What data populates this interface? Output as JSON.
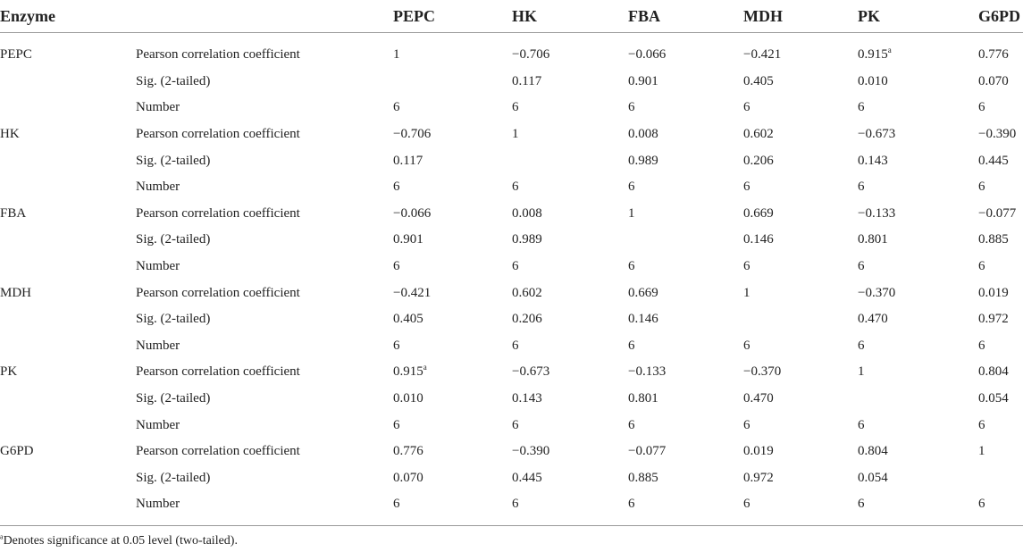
{
  "header": {
    "enzyme": "Enzyme",
    "stat": "",
    "columns": [
      "PEPC",
      "HK",
      "FBA",
      "MDH",
      "PK",
      "G6PD"
    ]
  },
  "groups": [
    {
      "enzyme": "PEPC",
      "rows": [
        {
          "stat": "Pearson correlation coefficient",
          "values": [
            "1",
            "−0.706",
            "−0.066",
            "−0.421",
            "0.915",
            "0.776"
          ],
          "sups": [
            "",
            "",
            "",
            "",
            "a",
            ""
          ]
        },
        {
          "stat": "Sig. (2-tailed)",
          "values": [
            "",
            "0.117",
            "0.901",
            "0.405",
            "0.010",
            "0.070"
          ],
          "sups": [
            "",
            "",
            "",
            "",
            "",
            ""
          ]
        },
        {
          "stat": "Number",
          "values": [
            "6",
            "6",
            "6",
            "6",
            "6",
            "6"
          ],
          "sups": [
            "",
            "",
            "",
            "",
            "",
            ""
          ]
        }
      ]
    },
    {
      "enzyme": "HK",
      "rows": [
        {
          "stat": "Pearson correlation coefficient",
          "values": [
            "−0.706",
            "1",
            "0.008",
            "0.602",
            "−0.673",
            "−0.390"
          ],
          "sups": [
            "",
            "",
            "",
            "",
            "",
            ""
          ]
        },
        {
          "stat": "Sig. (2-tailed)",
          "values": [
            "0.117",
            "",
            "0.989",
            "0.206",
            "0.143",
            "0.445"
          ],
          "sups": [
            "",
            "",
            "",
            "",
            "",
            ""
          ]
        },
        {
          "stat": "Number",
          "values": [
            "6",
            "6",
            "6",
            "6",
            "6",
            "6"
          ],
          "sups": [
            "",
            "",
            "",
            "",
            "",
            ""
          ]
        }
      ]
    },
    {
      "enzyme": "FBA",
      "rows": [
        {
          "stat": "Pearson correlation coefficient",
          "values": [
            "−0.066",
            "0.008",
            "1",
            "0.669",
            "−0.133",
            "−0.077"
          ],
          "sups": [
            "",
            "",
            "",
            "",
            "",
            ""
          ]
        },
        {
          "stat": "Sig. (2-tailed)",
          "values": [
            "0.901",
            "0.989",
            "",
            "0.146",
            "0.801",
            "0.885"
          ],
          "sups": [
            "",
            "",
            "",
            "",
            "",
            ""
          ]
        },
        {
          "stat": "Number",
          "values": [
            "6",
            "6",
            "6",
            "6",
            "6",
            "6"
          ],
          "sups": [
            "",
            "",
            "",
            "",
            "",
            ""
          ]
        }
      ]
    },
    {
      "enzyme": "MDH",
      "rows": [
        {
          "stat": "Pearson correlation coefficient",
          "values": [
            "−0.421",
            "0.602",
            "0.669",
            "1",
            "−0.370",
            "0.019"
          ],
          "sups": [
            "",
            "",
            "",
            "",
            "",
            ""
          ]
        },
        {
          "stat": "Sig. (2-tailed)",
          "values": [
            "0.405",
            "0.206",
            "0.146",
            "",
            "0.470",
            "0.972"
          ],
          "sups": [
            "",
            "",
            "",
            "",
            "",
            ""
          ]
        },
        {
          "stat": "Number",
          "values": [
            "6",
            "6",
            "6",
            "6",
            "6",
            "6"
          ],
          "sups": [
            "",
            "",
            "",
            "",
            "",
            ""
          ]
        }
      ]
    },
    {
      "enzyme": "PK",
      "rows": [
        {
          "stat": "Pearson correlation coefficient",
          "values": [
            "0.915",
            "−0.673",
            "−0.133",
            "−0.370",
            "1",
            "0.804"
          ],
          "sups": [
            "a",
            "",
            "",
            "",
            "",
            ""
          ]
        },
        {
          "stat": "Sig. (2-tailed)",
          "values": [
            "0.010",
            "0.143",
            "0.801",
            "0.470",
            "",
            "0.054"
          ],
          "sups": [
            "",
            "",
            "",
            "",
            "",
            ""
          ]
        },
        {
          "stat": "Number",
          "values": [
            "6",
            "6",
            "6",
            "6",
            "6",
            "6"
          ],
          "sups": [
            "",
            "",
            "",
            "",
            "",
            ""
          ]
        }
      ]
    },
    {
      "enzyme": "G6PD",
      "rows": [
        {
          "stat": "Pearson correlation coefficient",
          "values": [
            "0.776",
            "−0.390",
            "−0.077",
            "0.019",
            "0.804",
            "1"
          ],
          "sups": [
            "",
            "",
            "",
            "",
            "",
            ""
          ]
        },
        {
          "stat": "Sig. (2-tailed)",
          "values": [
            "0.070",
            "0.445",
            "0.885",
            "0.972",
            "0.054",
            ""
          ],
          "sups": [
            "",
            "",
            "",
            "",
            "",
            ""
          ]
        },
        {
          "stat": "Number",
          "values": [
            "6",
            "6",
            "6",
            "6",
            "6",
            "6"
          ],
          "sups": [
            "",
            "",
            "",
            "",
            "",
            ""
          ]
        }
      ]
    }
  ],
  "footnote": {
    "marker": "a",
    "text": "Denotes significance at 0.05 level (two-tailed)."
  }
}
